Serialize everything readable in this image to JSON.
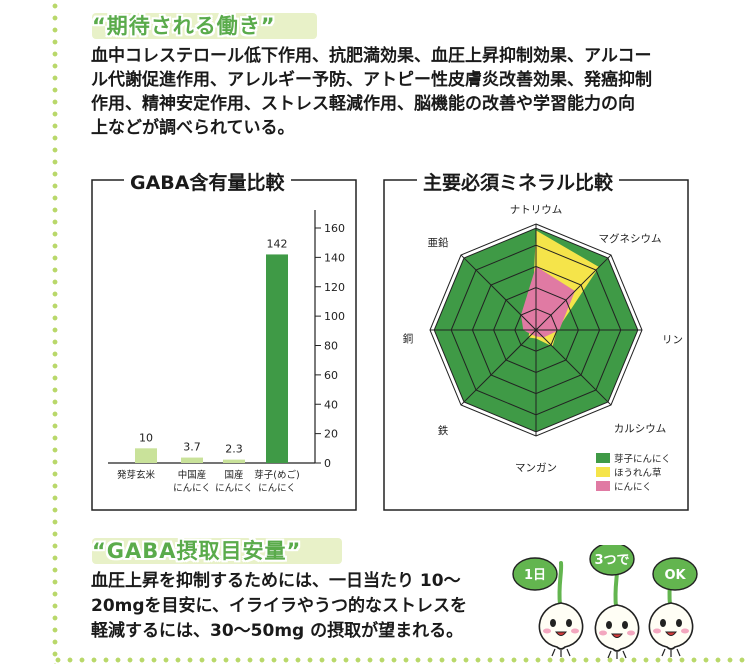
{
  "section1": {
    "heading": "“期待される働き”",
    "lines": [
      "血中コレステロール低下作用、抗肥満効果、血圧上昇抑制効果、アルコー",
      "ル代謝促進作用、アレルギー予防、アトピー性皮膚炎改善効果、発癌抑制",
      "作用、精神安定作用、ストレス軽減作用、脳機能の改善や学習能力の向",
      "上などが調べられている。"
    ]
  },
  "gaba_chart": {
    "title": "GABA含有量比較",
    "chart_data": {
      "type": "bar",
      "title": "GABA含有量比較",
      "categories": [
        [
          "発芽玄米"
        ],
        [
          "中国産",
          "にんにく"
        ],
        [
          "国産",
          "にんにく"
        ],
        [
          "芽子(めご)",
          "にんにく"
        ]
      ],
      "values": [
        10,
        3.7,
        2.3,
        142
      ],
      "value_labels": [
        "10",
        "3.7",
        "2.3",
        "142"
      ],
      "ylim": [
        0,
        160
      ],
      "yticks": [
        "0",
        "20",
        "40",
        "60",
        "80",
        "100",
        "120",
        "140",
        "160"
      ],
      "colors": [
        "#c9e29a",
        "#c9e29a",
        "#c9e29a",
        "#3f9a46"
      ]
    }
  },
  "mineral_chart": {
    "title": "主要必須ミネラル比較",
    "chart_data": {
      "type": "radar",
      "title": "主要必須ミネラル比較",
      "axes": [
        "ナトリウム",
        "マグネシウム",
        "リン",
        "カルシウム",
        "マンガン",
        "鉄",
        "銅",
        "亜鉛"
      ],
      "rings": 5,
      "series": [
        {
          "name": "芽子にんにく",
          "color": "#3f9a46",
          "values": [
            4.8,
            4.8,
            4.8,
            4.8,
            4.8,
            4.8,
            4.8,
            4.8
          ]
        },
        {
          "name": "ほうれん草",
          "color": "#f5e44a",
          "values": [
            4.7,
            4.2,
            1.0,
            1.1,
            0.4,
            0.5,
            0.3,
            0.3
          ]
        },
        {
          "name": "にんにく",
          "color": "#e07aa3",
          "values": [
            3.0,
            2.6,
            1.1,
            0.5,
            0.3,
            0.3,
            0.6,
            1.0
          ]
        }
      ],
      "legend": [
        "芽子にんにく",
        "ほうれん草",
        "にんにく"
      ]
    }
  },
  "section2": {
    "heading": "“GABA摂取目安量”",
    "lines": [
      "血圧上昇を抑制するためには、一日当たり 10〜",
      "20mgを目安に、イライラやうつ的なストレスを",
      "軽減するには、30〜50mg の摂取が望まれる。"
    ]
  },
  "mascots": {
    "bubbles": [
      "1日",
      "3つで",
      "OK"
    ],
    "colors": {
      "green": "#63b54f",
      "skin": "#fffef5",
      "cheek": "#f3a7bf"
    }
  }
}
